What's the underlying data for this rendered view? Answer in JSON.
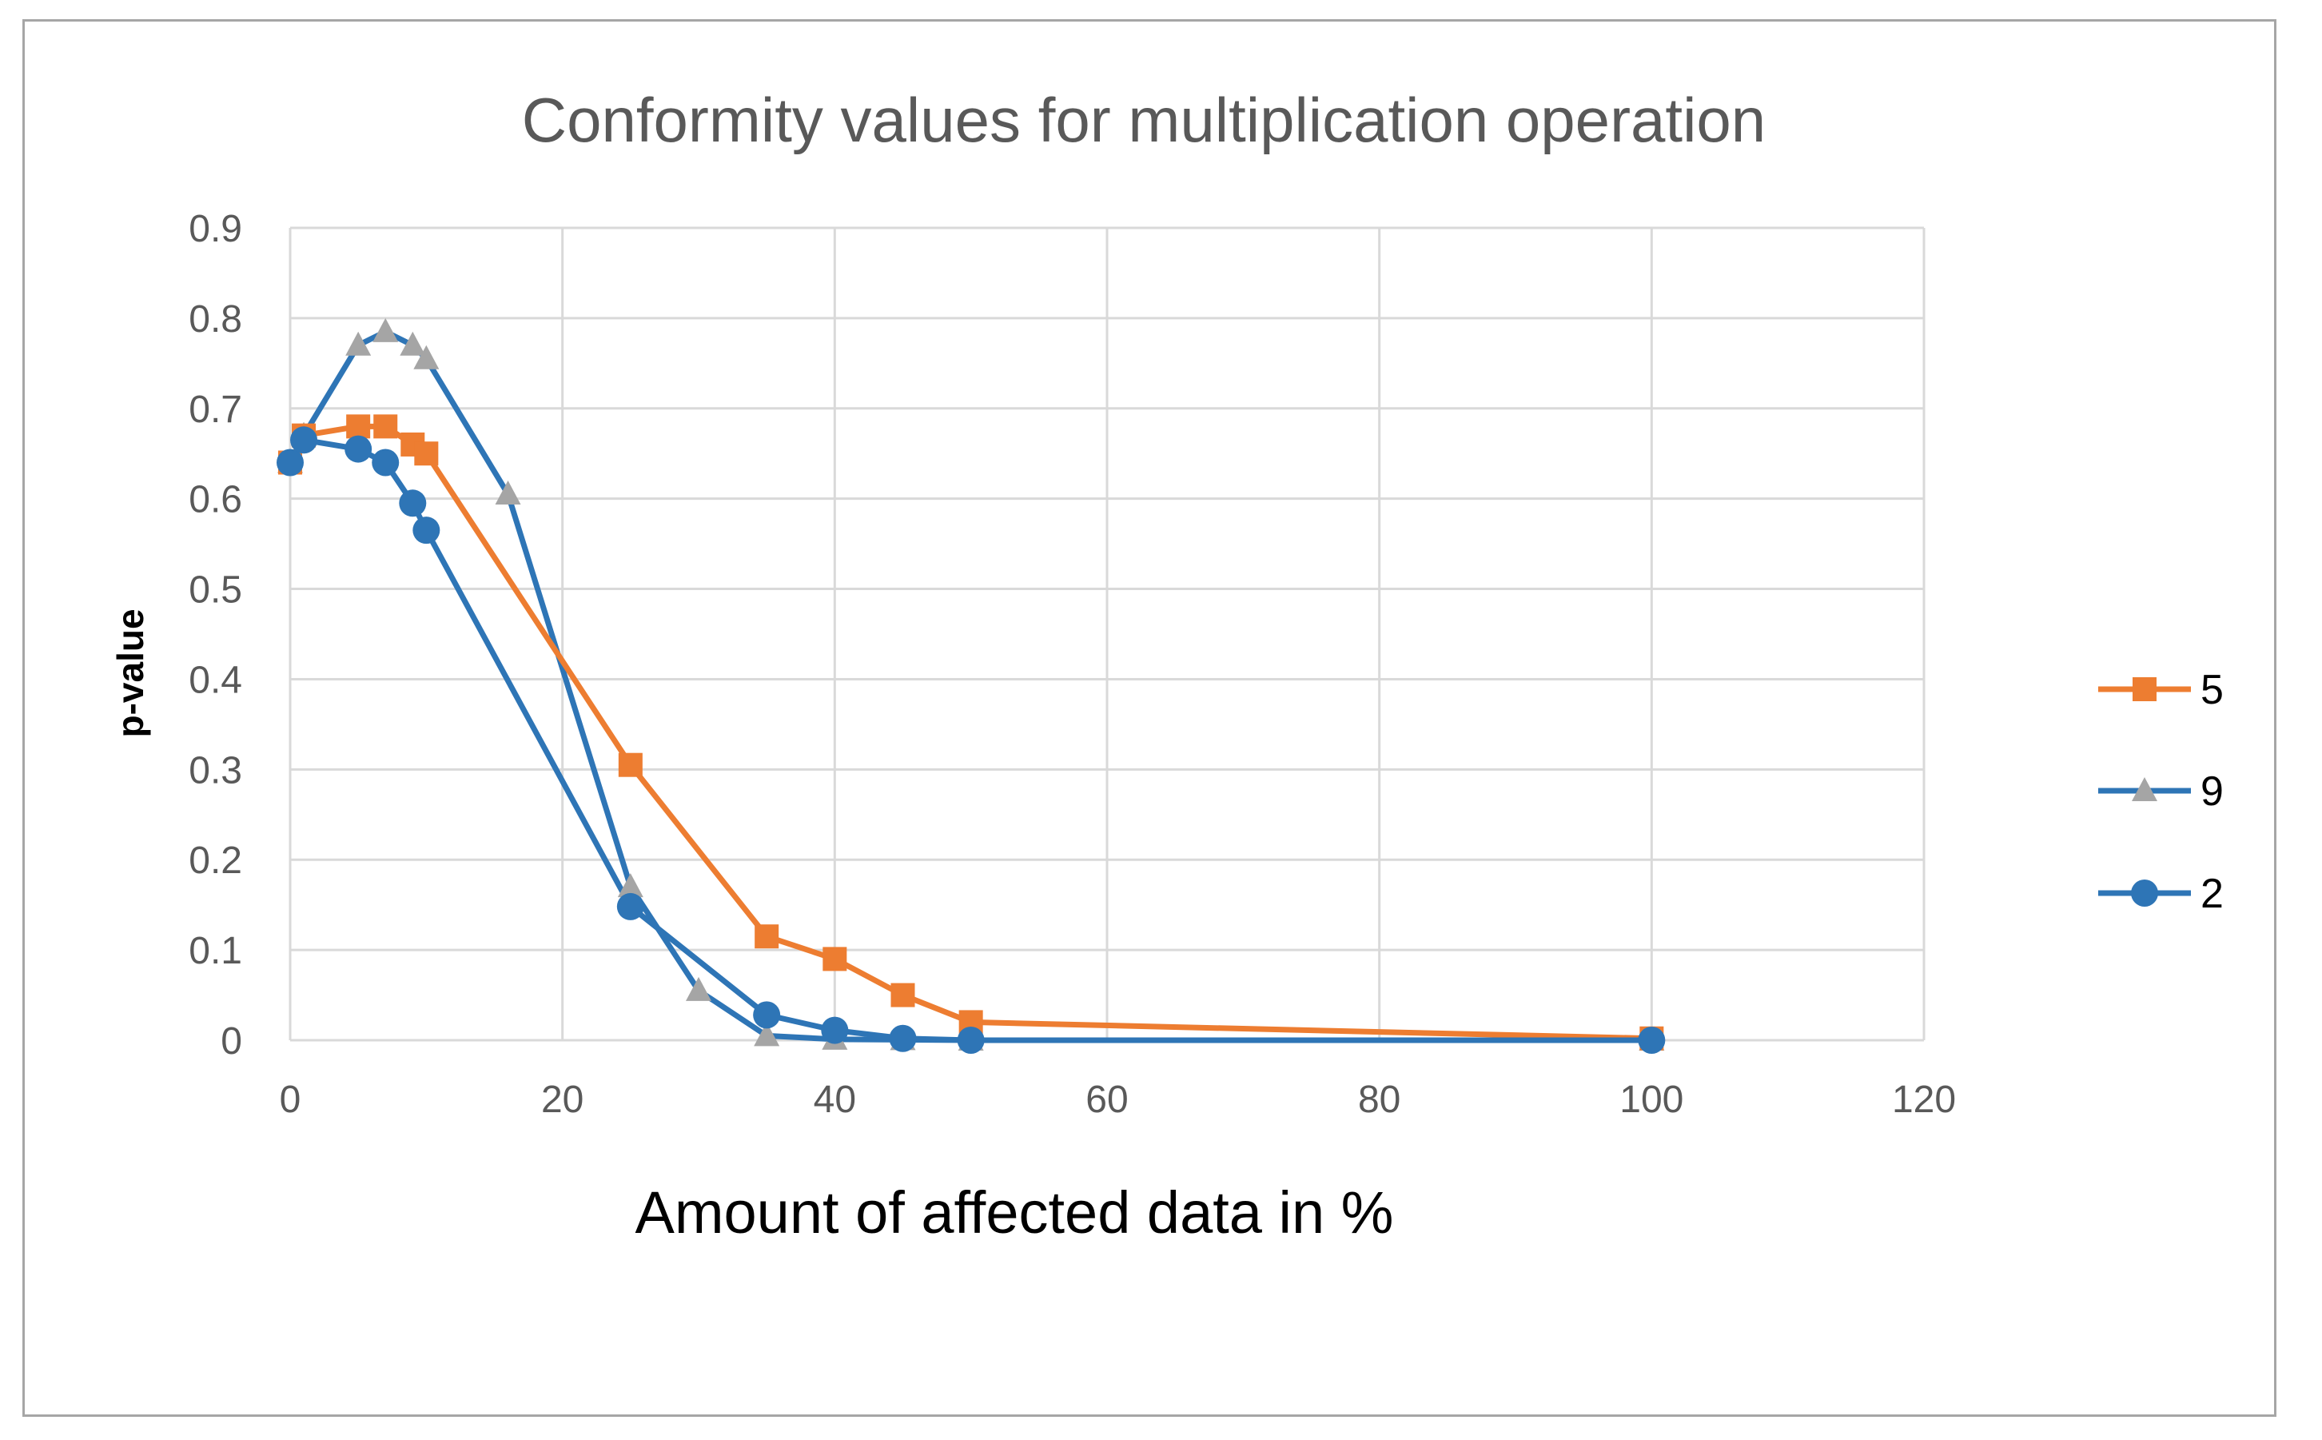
{
  "chart_data": {
    "type": "line",
    "title": "Conformity values for multiplication operation",
    "xlabel": "Amount of affected data in %",
    "ylabel": "p-value",
    "xlim": [
      0,
      120
    ],
    "ylim": [
      0,
      0.9
    ],
    "xticks": [
      0,
      20,
      40,
      60,
      80,
      100,
      120
    ],
    "yticks": [
      0,
      0.1,
      0.2,
      0.3,
      0.4,
      0.5,
      0.6,
      0.7,
      0.8,
      0.9
    ],
    "ytick_labels": [
      "0",
      "0.1",
      "0.2",
      "0.3",
      "0.4",
      "0.5",
      "0.6",
      "0.7",
      "0.8",
      "0.9"
    ],
    "grid": true,
    "legend_position": "right",
    "series": [
      {
        "name": "5",
        "color": "#ED7D31",
        "marker": "square",
        "x": [
          0,
          1,
          5,
          7,
          9,
          10,
          25,
          35,
          40,
          45,
          50,
          100
        ],
        "y": [
          0.64,
          0.67,
          0.68,
          0.68,
          0.66,
          0.65,
          0.305,
          0.115,
          0.09,
          0.05,
          0.02,
          0.002
        ]
      },
      {
        "name": "9",
        "color": "#2E75B6",
        "marker_color": "#A5A5A5",
        "marker": "triangle",
        "x": [
          0,
          1,
          5,
          7,
          9,
          10,
          16,
          25,
          30,
          35,
          40,
          45,
          50,
          100
        ],
        "y": [
          0.64,
          0.67,
          0.77,
          0.785,
          0.77,
          0.755,
          0.605,
          0.17,
          0.055,
          0.005,
          0.001,
          0.0005,
          0.0,
          0.0
        ]
      },
      {
        "name": "2",
        "color": "#2E75B6",
        "marker": "circle",
        "x": [
          0,
          1,
          5,
          7,
          9,
          10,
          25,
          35,
          40,
          45,
          50,
          100
        ],
        "y": [
          0.64,
          0.665,
          0.655,
          0.64,
          0.595,
          0.565,
          0.148,
          0.028,
          0.011,
          0.002,
          0.0,
          0.0
        ]
      }
    ]
  }
}
